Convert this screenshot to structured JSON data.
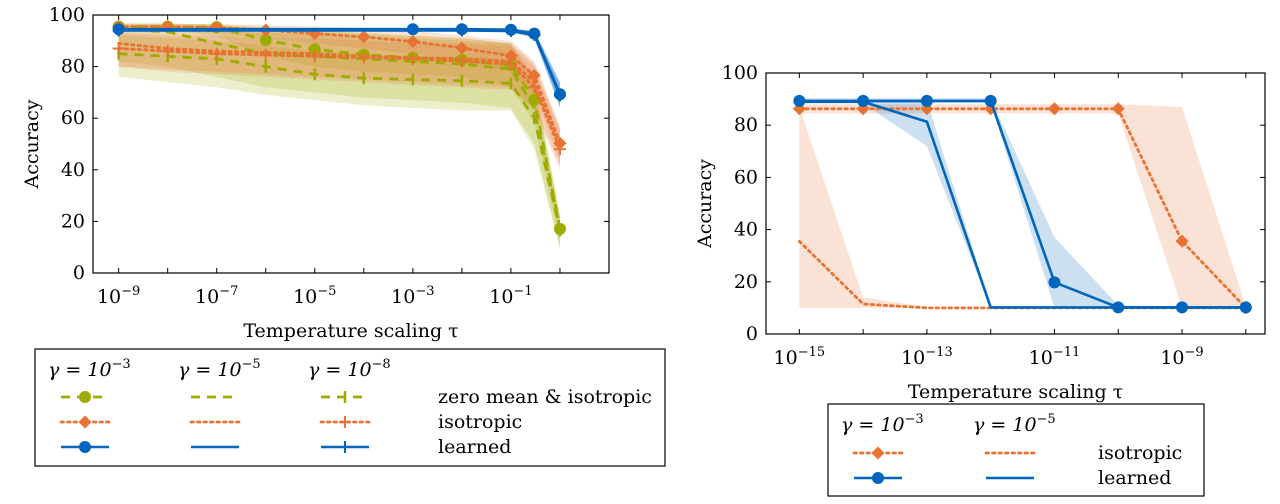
{
  "chart_data": [
    {
      "type": "line",
      "title": "",
      "xlabel": "Temperature scaling τ",
      "ylabel": "Accuracy",
      "xscale": "log",
      "xlim": [
        3e-10,
        10.0
      ],
      "ylim": [
        0,
        100
      ],
      "xticks": [
        {
          "value": 1e-09,
          "label": "10",
          "exp": "−9"
        },
        {
          "value": 1e-07,
          "label": "10",
          "exp": "−7"
        },
        {
          "value": 1e-05,
          "label": "10",
          "exp": "−5"
        },
        {
          "value": 0.001,
          "label": "10",
          "exp": "−3"
        },
        {
          "value": 0.1,
          "label": "10",
          "exp": "−1"
        }
      ],
      "yticks": [
        0,
        20,
        40,
        60,
        80,
        100
      ],
      "grid": false,
      "legend_position": "below",
      "legend": {
        "columns": [
          {
            "label": "γ = 10",
            "exp": "−3"
          },
          {
            "label": "γ = 10",
            "exp": "−5"
          },
          {
            "label": "γ = 10",
            "exp": "−8"
          }
        ],
        "rows": [
          "zero mean & isotropic",
          "isotropic",
          "learned"
        ]
      },
      "series": [
        {
          "method": "zero mean & isotropic",
          "gamma": "1e-3",
          "color": "#9eab00",
          "style": "dashed",
          "marker": "circle",
          "x": [
            1e-09,
            1e-08,
            1e-07,
            1e-06,
            1e-05,
            0.0001,
            0.001,
            0.01,
            0.1,
            0.3,
            1
          ],
          "y": [
            95.5,
            95.5,
            95.3,
            90.3,
            86.7,
            84.6,
            83.5,
            82.6,
            80.6,
            67.2,
            17.1
          ],
          "band_low": [
            94,
            94,
            92,
            84,
            80,
            78,
            77,
            76,
            72,
            58,
            12
          ],
          "band_high": [
            96.5,
            96.5,
            96.5,
            95,
            94,
            93,
            92,
            91,
            89,
            76,
            22
          ]
        },
        {
          "method": "zero mean & isotropic",
          "gamma": "1e-5",
          "color": "#9eab00",
          "style": "dashed",
          "marker": "none",
          "x": [
            1e-09,
            1e-08,
            1e-07,
            1e-06,
            1e-05,
            0.0001,
            0.001,
            0.01,
            0.1,
            0.3,
            1
          ],
          "y": [
            94.5,
            93.5,
            89.0,
            85.0,
            84.0,
            83.0,
            82.0,
            81.0,
            79.0,
            64.0,
            17.0
          ],
          "band_low": [
            82,
            80,
            76,
            72,
            70,
            68,
            67,
            66,
            64,
            50,
            10
          ],
          "band_high": [
            97,
            97,
            96,
            95,
            94,
            93,
            92,
            91,
            89,
            74,
            22
          ]
        },
        {
          "method": "zero mean & isotropic",
          "gamma": "1e-8",
          "color": "#9eab00",
          "style": "dashed",
          "marker": "bar",
          "x": [
            1e-09,
            1e-08,
            1e-07,
            1e-06,
            1e-05,
            0.0001,
            0.001,
            0.01,
            0.1,
            0.3,
            1
          ],
          "y": [
            85.0,
            84.0,
            83.0,
            80.0,
            77.0,
            75.5,
            75.0,
            74.5,
            73.5,
            60.0,
            16.5
          ],
          "band_low": [
            76,
            74,
            72,
            69,
            67,
            65,
            64,
            63,
            63,
            48,
            9
          ],
          "band_high": [
            92,
            91,
            90,
            88,
            86,
            85,
            84,
            84,
            83,
            70,
            22
          ]
        },
        {
          "method": "isotropic",
          "gamma": "1e-3",
          "color": "#e67332",
          "style": "dotted",
          "marker": "diamond",
          "x": [
            1e-09,
            1e-08,
            1e-07,
            1e-06,
            1e-05,
            0.0001,
            0.001,
            0.01,
            0.1,
            0.3,
            1
          ],
          "y": [
            95.5,
            95.5,
            95.2,
            94.2,
            92.8,
            91.5,
            89.7,
            87.2,
            84.2,
            76.6,
            50.3
          ],
          "band_low": [
            94,
            94,
            93,
            91,
            89,
            87,
            85,
            82,
            78,
            70,
            43
          ],
          "band_high": [
            96.5,
            96.5,
            96.5,
            96,
            95.5,
            95,
            94,
            92,
            90,
            82,
            57
          ]
        },
        {
          "method": "isotropic",
          "gamma": "1e-5",
          "color": "#e67332",
          "style": "dotted",
          "marker": "none",
          "x": [
            1e-09,
            1e-08,
            1e-07,
            1e-06,
            1e-05,
            0.0001,
            0.001,
            0.01,
            0.1,
            0.3,
            1
          ],
          "y": [
            89.0,
            87.0,
            86.0,
            85.5,
            85.0,
            84.0,
            83.5,
            83.0,
            82.0,
            74.0,
            50.0
          ],
          "band_low": [
            80,
            78,
            77,
            76,
            75,
            74,
            73,
            72,
            71,
            64,
            42
          ],
          "band_high": [
            95,
            94,
            94,
            93,
            93,
            92,
            91,
            90,
            89,
            81,
            56
          ]
        },
        {
          "method": "isotropic",
          "gamma": "1e-8",
          "color": "#e67332",
          "style": "dotted",
          "marker": "cross",
          "x": [
            1e-09,
            1e-08,
            1e-07,
            1e-06,
            1e-05,
            0.0001,
            0.001,
            0.01,
            0.1,
            0.3,
            1
          ],
          "y": [
            87.0,
            86.0,
            85.0,
            84.5,
            84.0,
            83.5,
            83.0,
            82.0,
            81.0,
            72.0,
            48.0
          ],
          "band_low": [
            80,
            79,
            78,
            77,
            76,
            75,
            74,
            73,
            72,
            63,
            40
          ],
          "band_high": [
            93,
            92,
            92,
            91,
            91,
            90,
            89,
            89,
            88,
            80,
            55
          ]
        },
        {
          "method": "learned",
          "gamma": "1e-3",
          "color": "#0065bd",
          "style": "solid",
          "marker": "circle",
          "x": [
            1e-09,
            0.001,
            0.01,
            0.1,
            0.3,
            1
          ],
          "y": [
            94.5,
            94.5,
            94.5,
            94.3,
            92.8,
            69.3
          ],
          "band_low": [
            94,
            94,
            94,
            93.8,
            91.5,
            65
          ],
          "band_high": [
            95,
            95,
            95,
            94.8,
            94,
            74
          ]
        },
        {
          "method": "learned",
          "gamma": "1e-5",
          "color": "#0065bd",
          "style": "solid",
          "marker": "none",
          "x": [
            1e-09,
            0.01,
            0.1,
            0.3,
            1
          ],
          "y": [
            94.2,
            94.2,
            94.0,
            92.5,
            69.0
          ],
          "band_low": [
            93.7,
            93.7,
            93.5,
            91,
            64
          ],
          "band_high": [
            94.7,
            94.7,
            94.5,
            94,
            74
          ]
        },
        {
          "method": "learned",
          "gamma": "1e-8",
          "color": "#0065bd",
          "style": "solid",
          "marker": "cross",
          "x": [
            1e-09,
            0.01,
            0.1,
            0.3,
            1
          ],
          "y": [
            94.0,
            94.0,
            93.8,
            92.3,
            68.8
          ],
          "band_low": [
            93.5,
            93.5,
            93.3,
            91,
            64
          ],
          "band_high": [
            94.5,
            94.5,
            94.3,
            93.8,
            73
          ]
        }
      ]
    },
    {
      "type": "line",
      "title": "",
      "xlabel": "Temperature scaling τ",
      "ylabel": "Accuracy",
      "xscale": "log",
      "xlim": [
        3e-16,
        2e-08
      ],
      "ylim": [
        0,
        100
      ],
      "xticks": [
        {
          "value": 1e-15,
          "label": "10",
          "exp": "−15"
        },
        {
          "value": 1e-13,
          "label": "10",
          "exp": "−13"
        },
        {
          "value": 1e-11,
          "label": "10",
          "exp": "−11"
        },
        {
          "value": 1e-09,
          "label": "10",
          "exp": "−9"
        }
      ],
      "yticks": [
        0,
        20,
        40,
        60,
        80,
        100
      ],
      "grid": false,
      "legend_position": "below",
      "legend": {
        "columns": [
          {
            "label": "γ = 10",
            "exp": "−3"
          },
          {
            "label": "γ = 10",
            "exp": "−5"
          }
        ],
        "rows": [
          "isotropic",
          "learned"
        ]
      },
      "series": [
        {
          "method": "isotropic",
          "gamma": "1e-3",
          "color": "#e67332",
          "style": "dotted",
          "marker": "diamond",
          "x": [
            1e-15,
            1e-14,
            1e-13,
            1e-12,
            1e-11,
            1e-10,
            1e-09,
            1e-08
          ],
          "y": [
            86.3,
            86.3,
            86.3,
            86.3,
            86.3,
            86.3,
            35.6,
            10.0
          ],
          "band_low": [
            84.5,
            84.5,
            84.5,
            84.5,
            84.5,
            84.5,
            10,
            10
          ],
          "band_high": [
            88,
            88,
            88,
            88,
            88,
            88,
            87,
            10.5
          ]
        },
        {
          "method": "isotropic",
          "gamma": "1e-5",
          "color": "#e67332",
          "style": "dotted",
          "marker": "none",
          "x": [
            1e-15,
            1e-14,
            1e-13,
            1e-12,
            1e-11,
            1e-10,
            1e-09,
            1e-08
          ],
          "y": [
            35.5,
            11.5,
            10.0,
            10.0,
            10.0,
            10.0,
            10.0,
            10.0
          ],
          "band_low": [
            10,
            10,
            10,
            10,
            10,
            10,
            10,
            10
          ],
          "band_high": [
            87,
            14,
            10.5,
            10.5,
            10.5,
            10.5,
            10.5,
            10.5
          ]
        },
        {
          "method": "learned",
          "gamma": "1e-3",
          "color": "#0065bd",
          "style": "solid",
          "marker": "circle",
          "x": [
            1e-15,
            1e-14,
            1e-13,
            1e-12,
            1e-11,
            1e-10,
            1e-09,
            1e-08
          ],
          "y": [
            89.3,
            89.3,
            89.3,
            89.3,
            19.8,
            10.2,
            10.2,
            10.2
          ],
          "band_low": [
            88.5,
            88.5,
            88.5,
            88.5,
            10,
            10,
            10,
            10
          ],
          "band_high": [
            90.3,
            90.3,
            90.3,
            90.3,
            37,
            11,
            10.5,
            10.5
          ]
        },
        {
          "method": "learned",
          "gamma": "1e-5",
          "color": "#0065bd",
          "style": "solid",
          "marker": "none",
          "x": [
            1e-15,
            1e-14,
            1e-13,
            1e-12,
            1e-11,
            1e-10,
            1e-09,
            1e-08
          ],
          "y": [
            89.0,
            89.0,
            81.3,
            10.2,
            10.2,
            10.2,
            10.2,
            10.2
          ],
          "band_low": [
            88.3,
            88.3,
            72,
            10,
            10,
            10,
            10,
            10
          ],
          "band_high": [
            89.8,
            89.8,
            89.5,
            10.5,
            10.5,
            10.5,
            10.5,
            10.5
          ]
        }
      ]
    }
  ]
}
